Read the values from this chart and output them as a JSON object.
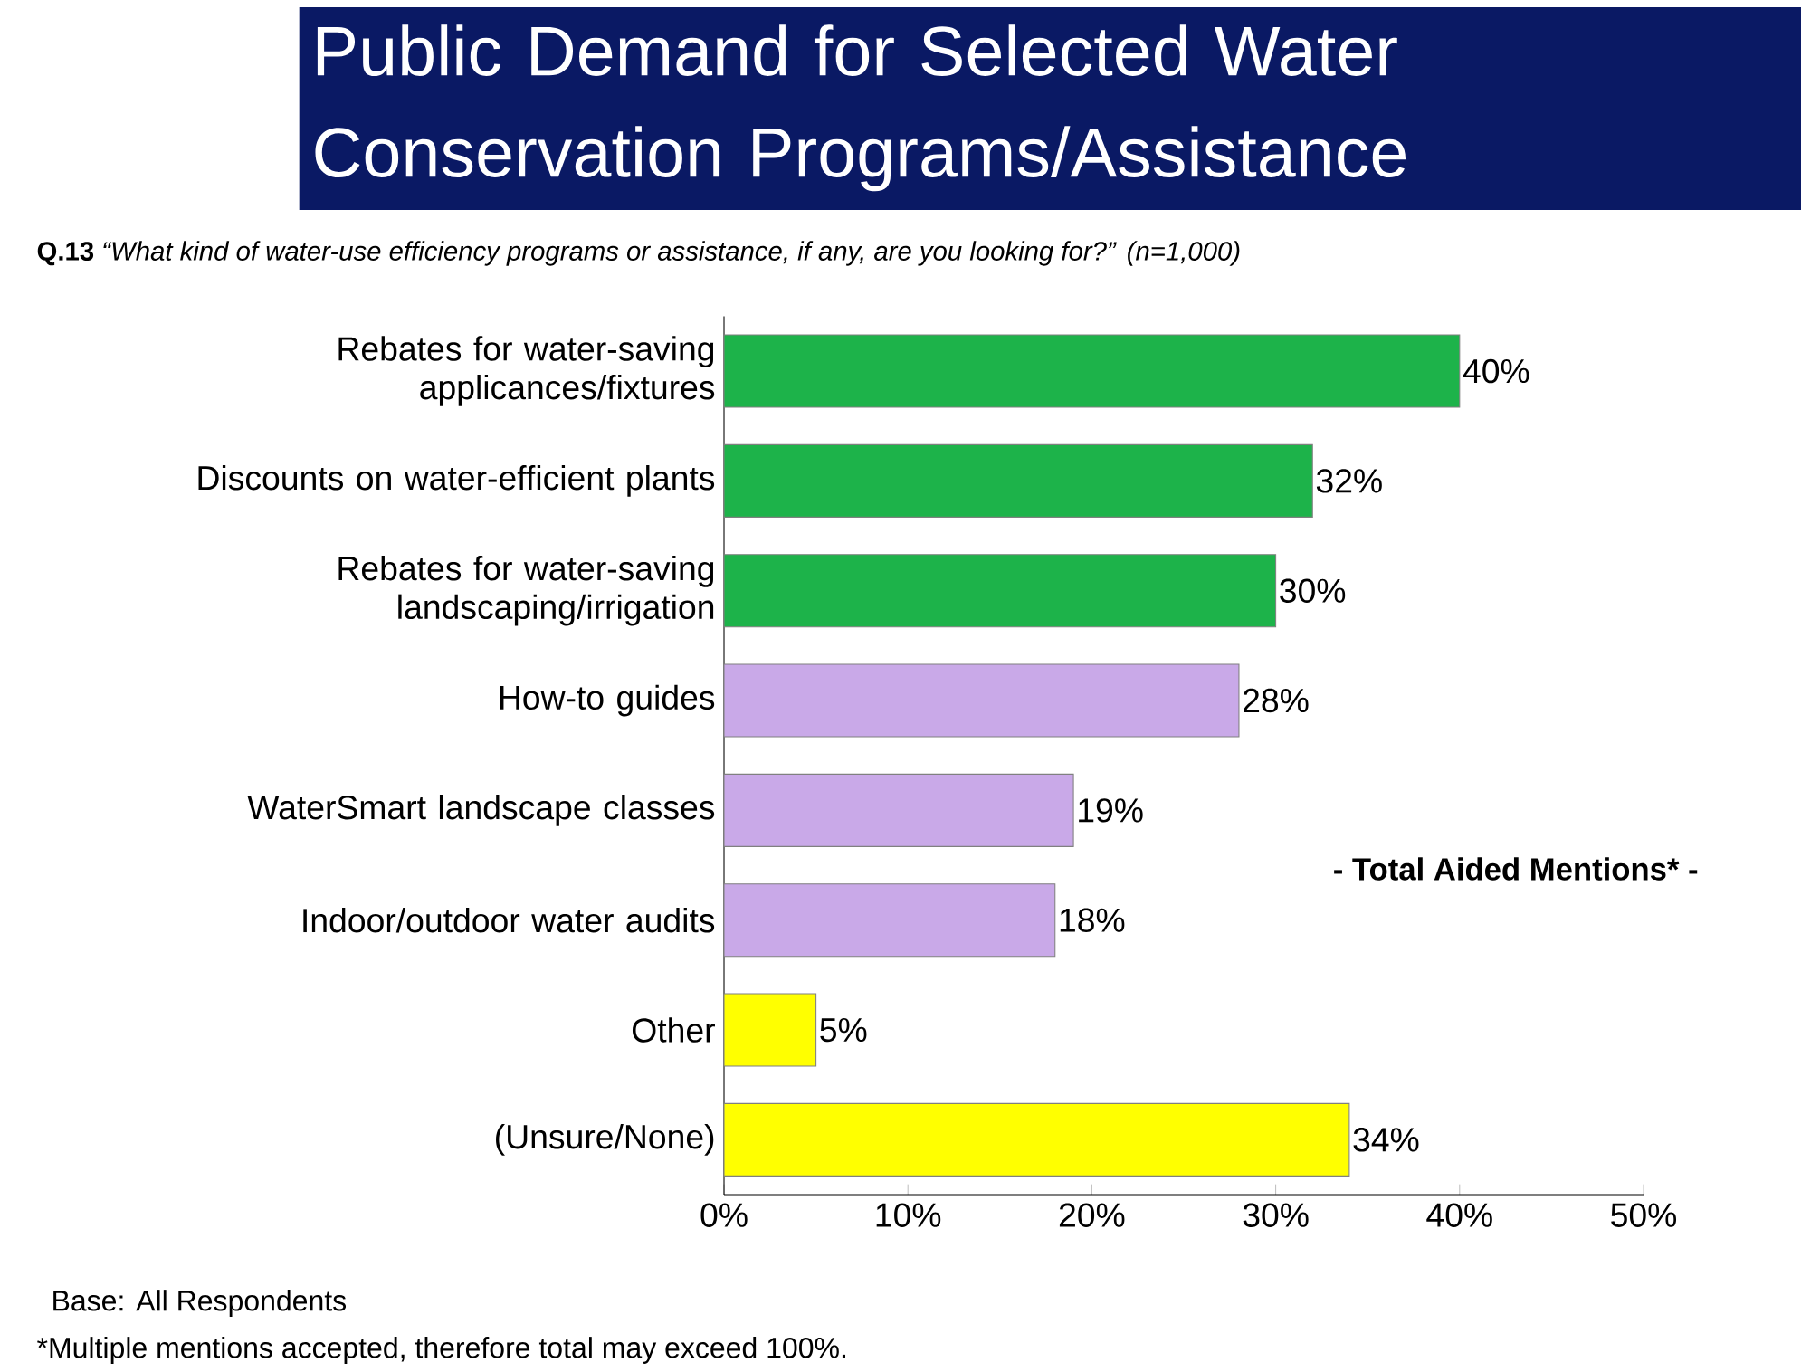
{
  "chart_data": {
    "type": "bar",
    "orientation": "horizontal",
    "title": "Public Demand for Selected Water Conservation Programs/Assistance",
    "subtitle": "**Q.13** *“What kind of water-use efficiency programs or assistance, if any, are you looking for?”*  *(n=1,000)*",
    "categories": [
      "Rebates for water-saving applicances/fixtures",
      "Discounts on water-efficient plants",
      "Rebates for water-saving landscaping/irrigation",
      "How-to guides",
      "WaterSmart landscape classes",
      "Indoor/outdoor water audits",
      "Other",
      "(Unsure/None)"
    ],
    "values": [
      40,
      32,
      30,
      28,
      19,
      18,
      5,
      34
    ],
    "value_labels": [
      "40%",
      "32%",
      "30%",
      "28%",
      "19%",
      "18%",
      "5%",
      "34%"
    ],
    "colors": [
      "#1db34a",
      "#1db34a",
      "#1db34a",
      "#c9a9e8",
      "#c9a9e8",
      "#c9a9e8",
      "#ffff00",
      "#ffff00"
    ],
    "xlim": [
      0,
      50
    ],
    "xticks": [
      {
        "value": 0,
        "label": "0%"
      },
      {
        "value": 10,
        "label": "10%"
      },
      {
        "value": 20,
        "label": "20%"
      },
      {
        "value": 30,
        "label": "30%"
      },
      {
        "value": 40,
        "label": "40%"
      },
      {
        "value": 50,
        "label": "50%"
      }
    ],
    "annotations": [
      "- Total Aided Mentions* -",
      "Base:  All Respondents",
      "*Multiple mentions accepted, therefore total may exceed 100%."
    ],
    "grid": false
  }
}
